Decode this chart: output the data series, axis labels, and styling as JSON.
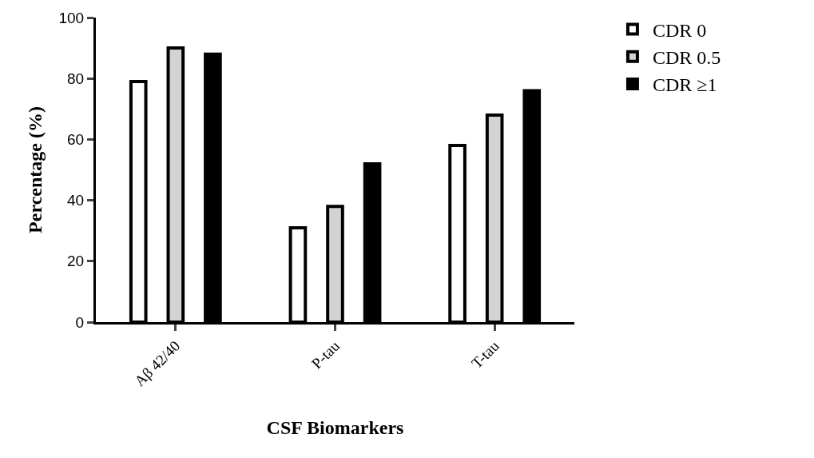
{
  "chart_data": {
    "type": "bar",
    "xlabel": "CSF Biomarkers",
    "ylabel": "Percentage (%)",
    "categories": [
      "Aβ 42/40",
      "P-tau",
      "T-tau"
    ],
    "series": [
      {
        "name": "CDR 0",
        "color": "#ffffff",
        "values": [
          79,
          31,
          58
        ]
      },
      {
        "name": "CDR 0.5",
        "color": "#d3d3d3",
        "values": [
          90,
          38,
          68
        ]
      },
      {
        "name": "CDR ≥1",
        "color": "#000000",
        "values": [
          88,
          52,
          76
        ]
      }
    ],
    "ylim": [
      0,
      100
    ],
    "yticks": [
      0,
      20,
      40,
      60,
      80,
      100
    ],
    "legend": "top right"
  }
}
